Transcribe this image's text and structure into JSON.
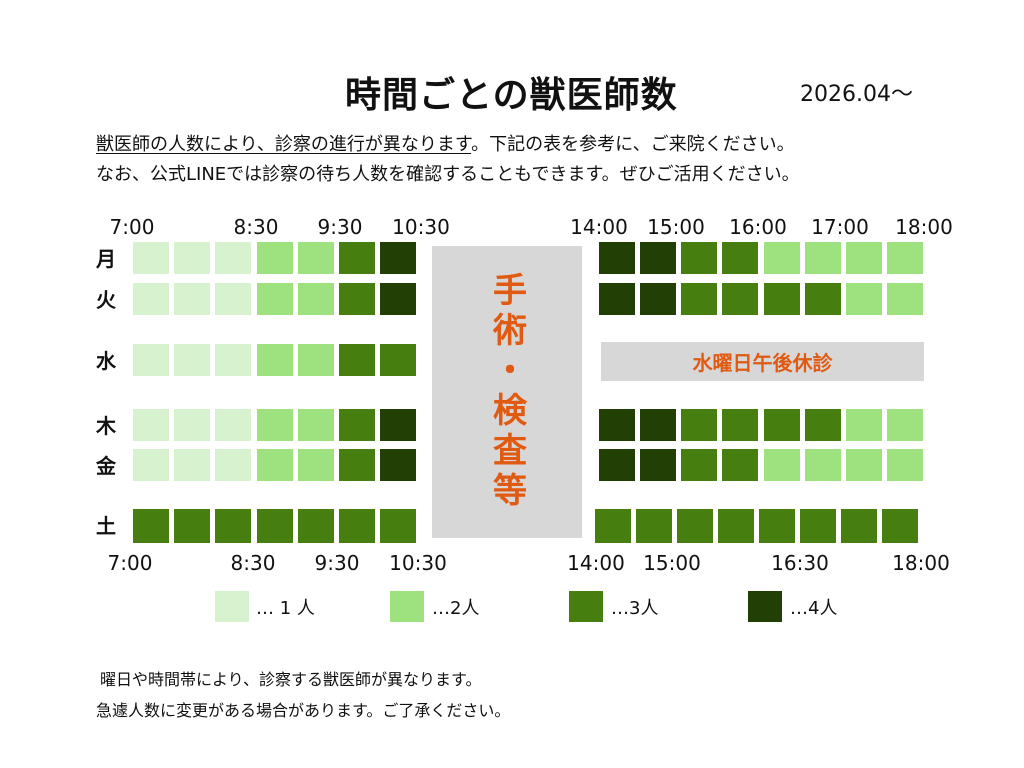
{
  "title": "時間ごとの獣医師数",
  "date": "2026.04〜",
  "intro": {
    "line1_underlined": "獣医師の人数により、診察の進行が異なります",
    "line1_rest": "。下記の表を参考に、ご来院ください。",
    "line2": "なお、公式LINEでは診察の待ち人数を確認することもできます。ぜひご活用ください。"
  },
  "top_times_am": [
    "7:00",
    "8:30",
    "9:30",
    "10:30"
  ],
  "top_times_pm": [
    "14:00",
    "15:00",
    "16:00",
    "17:00",
    "18:00"
  ],
  "bottom_times_am": [
    "7:00",
    "8:30",
    "9:30",
    "10:30"
  ],
  "bottom_times_pm": [
    "14:00",
    "15:00",
    "16:30",
    "18:00"
  ],
  "surgery_label": "手術・検査等",
  "closed_label": "水曜日午後休診",
  "rows": [
    {
      "day": "月",
      "am": [
        1,
        1,
        1,
        2,
        2,
        3,
        4
      ],
      "pm": [
        4,
        4,
        3,
        3,
        2,
        2,
        2,
        2
      ]
    },
    {
      "day": "火",
      "am": [
        1,
        1,
        1,
        2,
        2,
        3,
        4
      ],
      "pm": [
        4,
        4,
        3,
        3,
        3,
        3,
        2,
        2
      ]
    },
    {
      "day": "水",
      "am": [
        1,
        1,
        1,
        2,
        2,
        3,
        3
      ],
      "pm": []
    },
    {
      "day": "木",
      "am": [
        1,
        1,
        1,
        2,
        2,
        3,
        4
      ],
      "pm": [
        4,
        4,
        3,
        3,
        3,
        3,
        2,
        2
      ]
    },
    {
      "day": "金",
      "am": [
        1,
        1,
        1,
        2,
        2,
        3,
        4
      ],
      "pm": [
        4,
        4,
        3,
        3,
        2,
        2,
        2,
        2
      ]
    },
    {
      "day": "土",
      "am": [
        3,
        3,
        3,
        3,
        3,
        3,
        3
      ],
      "pm": [
        3,
        3,
        3,
        3,
        3,
        3,
        3,
        3
      ]
    }
  ],
  "legend": [
    {
      "level": 1,
      "label": "… 1 人",
      "color": "#d6f2cf"
    },
    {
      "level": 2,
      "label": "…2人",
      "color": "#9ee27f"
    },
    {
      "level": 3,
      "label": "…3人",
      "color": "#477e10"
    },
    {
      "level": 4,
      "label": "…4人",
      "color": "#223f05"
    }
  ],
  "notes": [
    "曜日や時間帯により、診察する獣医師が異なります。",
    "急遽人数に変更がある場合があります。ご了承ください。"
  ]
}
